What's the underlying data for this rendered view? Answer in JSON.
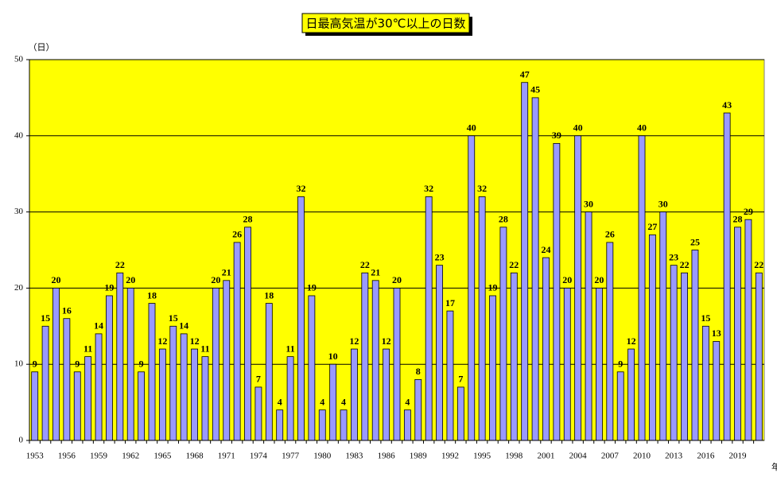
{
  "chart_data": {
    "type": "bar",
    "title": "日最高気温が30℃以上の日数",
    "y_label": "（日）",
    "x_label": "年",
    "categories": [
      "1953",
      null,
      null,
      "1956",
      null,
      null,
      "1959",
      null,
      null,
      "1962",
      null,
      null,
      "1965",
      null,
      null,
      "1968",
      null,
      null,
      "1971",
      null,
      null,
      "1974",
      null,
      null,
      "1977",
      null,
      null,
      "1980",
      null,
      null,
      "1983",
      null,
      null,
      "1986",
      null,
      null,
      "1989",
      null,
      null,
      "1992",
      null,
      null,
      "1995",
      null,
      null,
      "1998",
      null,
      null,
      "2001",
      null,
      null,
      "2004",
      null,
      null,
      "2007",
      null,
      null,
      "2010",
      null,
      null,
      "2013",
      null,
      null,
      "2016",
      null,
      null,
      "2019",
      null,
      null
    ],
    "values": [
      9,
      15,
      20,
      16,
      9,
      11,
      14,
      19,
      22,
      20,
      9,
      18,
      12,
      15,
      14,
      12,
      11,
      20,
      21,
      26,
      28,
      7,
      18,
      4,
      11,
      32,
      19,
      4,
      10,
      4,
      12,
      22,
      21,
      12,
      20,
      4,
      8,
      32,
      23,
      17,
      7,
      40,
      32,
      19,
      28,
      22,
      47,
      45,
      24,
      39,
      20,
      40,
      30,
      20,
      26,
      9,
      12,
      40,
      27,
      30,
      23,
      22,
      25,
      15,
      13,
      43,
      28,
      29,
      22
    ],
    "color": "#9999ff",
    "background": "#ffff00",
    "ylim": [
      0,
      50
    ],
    "yticks": [
      0,
      10,
      20,
      30,
      40,
      50
    ],
    "grid": true
  }
}
